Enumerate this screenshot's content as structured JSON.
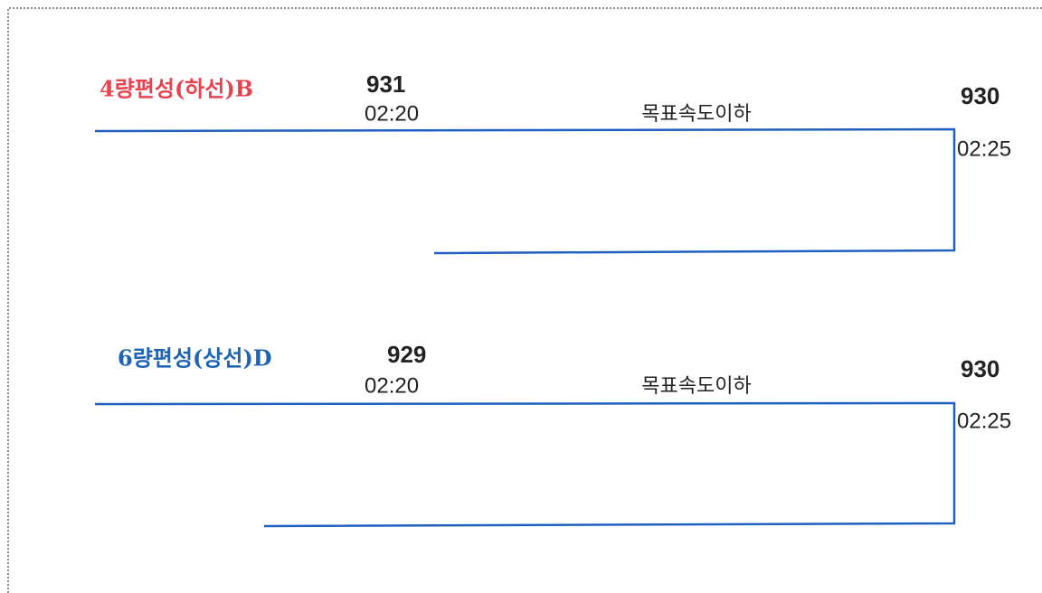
{
  "panels": [
    {
      "label": "4량편성(하선)B",
      "start_train": "931",
      "start_time": "02:20",
      "note": "목표속도이하",
      "end_train": "930",
      "end_time": "02:25"
    },
    {
      "label": "6량편성(상선)D",
      "start_train": "929",
      "start_time": "02:20",
      "note": "목표속도이하",
      "end_train": "930",
      "end_time": "02:25"
    }
  ]
}
